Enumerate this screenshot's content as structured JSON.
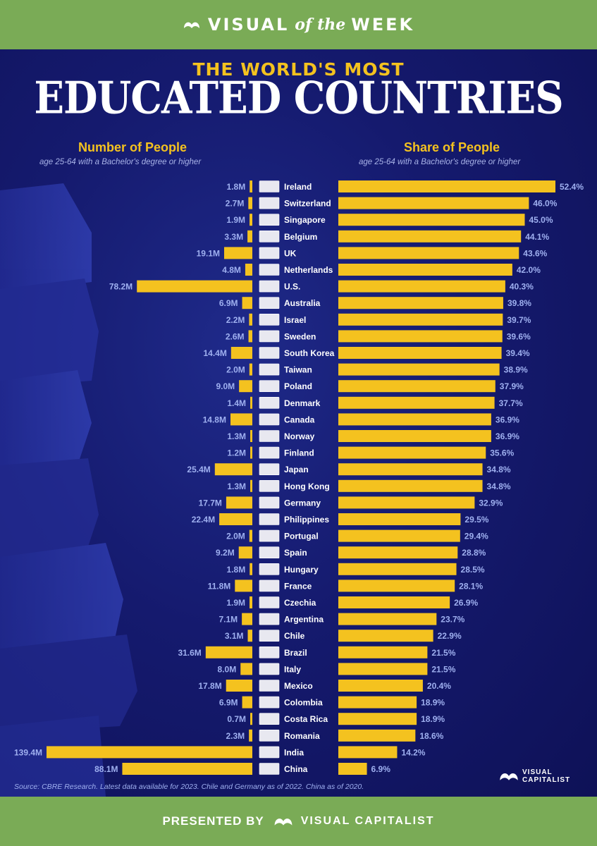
{
  "header": {
    "brand_left": "VISUAL",
    "brand_mid": "of the",
    "brand_right": "WEEK"
  },
  "title": {
    "kicker": "THE WORLD'S MOST",
    "headline": "EDUCATED COUNTRIES"
  },
  "chart_data": {
    "type": "bar",
    "title": "The World's Most Educated Countries",
    "left_title": "Number of People",
    "left_subtitle": "age 25-64 with a Bachelor's degree or higher",
    "right_title": "Share of People",
    "right_subtitle": "age 25-64 with a Bachelor's degree or higher",
    "left_label_suffix": "M",
    "right_label_suffix": "%",
    "categories": [
      "Ireland",
      "Switzerland",
      "Singapore",
      "Belgium",
      "UK",
      "Netherlands",
      "U.S.",
      "Australia",
      "Israel",
      "Sweden",
      "South Korea",
      "Taiwan",
      "Poland",
      "Denmark",
      "Canada",
      "Norway",
      "Finland",
      "Japan",
      "Hong Kong",
      "Germany",
      "Philippines",
      "Portugal",
      "Spain",
      "Hungary",
      "France",
      "Czechia",
      "Argentina",
      "Chile",
      "Brazil",
      "Italy",
      "Mexico",
      "Colombia",
      "Costa Rica",
      "Romania",
      "India",
      "China"
    ],
    "series": [
      {
        "name": "Number of People (millions)",
        "unit": "M",
        "values": [
          1.8,
          2.7,
          1.9,
          3.3,
          19.1,
          4.8,
          78.2,
          6.9,
          2.2,
          2.6,
          14.4,
          2.0,
          9.0,
          1.4,
          14.8,
          1.3,
          1.2,
          25.4,
          1.3,
          17.7,
          22.4,
          2.0,
          9.2,
          1.8,
          11.8,
          1.9,
          7.1,
          3.1,
          31.6,
          8.0,
          17.8,
          6.9,
          0.7,
          2.3,
          139.4,
          88.1
        ]
      },
      {
        "name": "Share of People (%)",
        "unit": "%",
        "values": [
          52.4,
          46.0,
          45.0,
          44.1,
          43.6,
          42.0,
          40.3,
          39.8,
          39.7,
          39.6,
          39.4,
          38.9,
          37.9,
          37.7,
          36.9,
          36.9,
          35.6,
          34.8,
          34.8,
          32.9,
          29.5,
          29.4,
          28.8,
          28.5,
          28.1,
          26.9,
          23.7,
          22.9,
          21.5,
          21.5,
          20.4,
          18.9,
          18.9,
          18.6,
          14.2,
          6.9
        ]
      }
    ],
    "left_xlim": [
      0,
      139.4
    ],
    "right_xlim": [
      0,
      52.4
    ],
    "bar_color": "#f4c21f",
    "label_color": "#9fb0f0"
  },
  "source": "Source: CBRE Research. Latest data available for 2023. Chile and Germany as of 2022. China as of 2020.",
  "corner_logo": {
    "line1": "VISUAL",
    "line2": "CAPITALIST"
  },
  "footer": {
    "presented_by": "PRESENTED BY",
    "brand": "VISUAL CAPITALIST"
  }
}
